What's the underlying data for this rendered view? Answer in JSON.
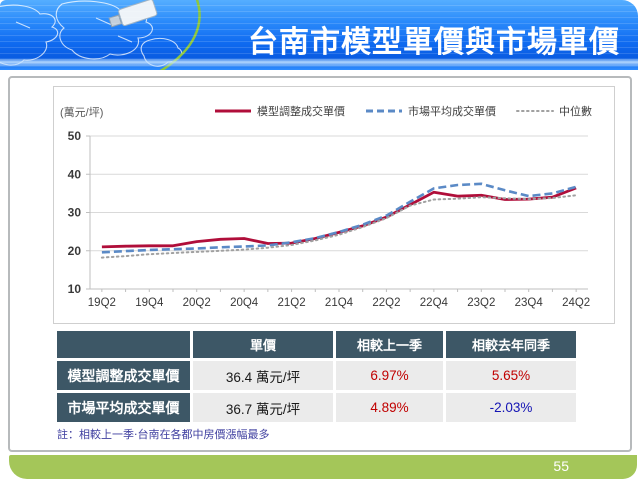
{
  "slide": {
    "title": "台南市模型單價與市場單價",
    "note": "註：相較上一季‧台南在各都中房價漲幅最多",
    "page_number": "55"
  },
  "chart": {
    "unit_label": "(萬元/坪)"
  },
  "chart_data": {
    "type": "line",
    "title": "",
    "ylabel": "(萬元/坪)",
    "xlabel": "",
    "ylim": [
      10,
      50
    ],
    "yticks": [
      10,
      20,
      30,
      40,
      50
    ],
    "grid": true,
    "legend_position": "top-right",
    "x": [
      "19Q2",
      "19Q3",
      "19Q4",
      "20Q1",
      "20Q2",
      "20Q3",
      "20Q4",
      "21Q1",
      "21Q2",
      "21Q3",
      "21Q4",
      "22Q1",
      "22Q2",
      "22Q3",
      "22Q4",
      "23Q1",
      "23Q2",
      "23Q3",
      "23Q4",
      "24Q1",
      "24Q2"
    ],
    "x_tick_labels": [
      "19Q2",
      "19Q4",
      "20Q2",
      "20Q4",
      "21Q2",
      "21Q4",
      "22Q2",
      "22Q4",
      "23Q2",
      "23Q4",
      "24Q2"
    ],
    "series": [
      {
        "name": "模型調整成交單價",
        "style": "solid",
        "color": "#b00e3a",
        "values": [
          21.0,
          21.2,
          21.3,
          21.3,
          22.4,
          23.0,
          23.2,
          21.9,
          22.0,
          23.2,
          24.8,
          26.5,
          28.8,
          32.0,
          35.3,
          34.3,
          34.5,
          33.4,
          33.5,
          34.0,
          36.4
        ]
      },
      {
        "name": "市場平均成交單價",
        "style": "dashed",
        "color": "#5b8ac6",
        "values": [
          19.6,
          19.9,
          20.2,
          20.4,
          20.6,
          20.9,
          21.1,
          21.4,
          22.2,
          23.3,
          24.9,
          26.8,
          29.2,
          32.8,
          36.3,
          37.2,
          37.5,
          35.8,
          34.3,
          35.0,
          36.7
        ]
      },
      {
        "name": "中位數",
        "style": "dotted",
        "color": "#a0a0a0",
        "values": [
          18.2,
          18.6,
          19.1,
          19.4,
          19.7,
          20.0,
          20.3,
          20.8,
          21.5,
          22.7,
          24.2,
          26.2,
          28.5,
          31.8,
          33.4,
          33.6,
          34.0,
          33.7,
          33.5,
          33.8,
          34.5
        ]
      }
    ]
  },
  "table": {
    "headers": [
      "",
      "單價",
      "相較上一季",
      "相較去年同季"
    ],
    "rows": [
      {
        "label": "模型調整成交單價",
        "unit_price": "36.4 萬元/坪",
        "qoq": "6.97%",
        "yoy": "5.65%"
      },
      {
        "label": "市場平均成交單價",
        "unit_price": "36.7 萬元/坪",
        "qoq": "4.89%",
        "yoy": "-2.03%"
      }
    ]
  },
  "colors": {
    "header_blue": "#0f6af0",
    "table_header_bg": "#3d5766",
    "table_cell_bg": "#ebebeb",
    "positive_pct": "#c00000",
    "negative_pct": "#1414b4",
    "footer_green": "#a4c659",
    "note_blue": "#4040a0"
  }
}
